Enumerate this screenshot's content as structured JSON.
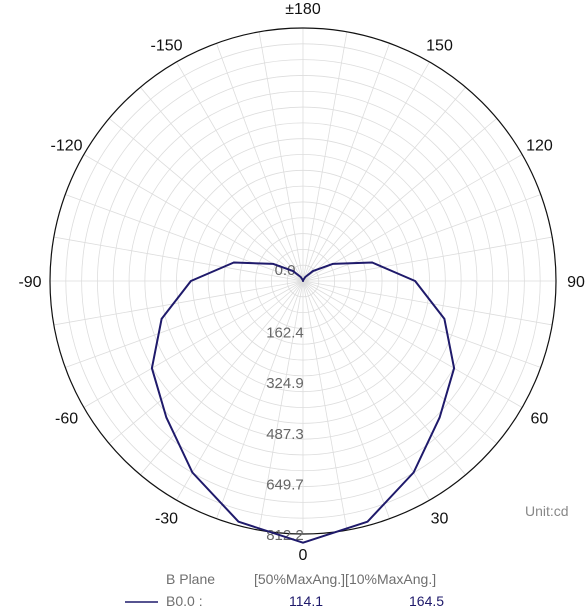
{
  "chart_data": {
    "type": "polar",
    "angle_labels": [
      "0",
      "30",
      "60",
      "90",
      "120",
      "150",
      "±180",
      "-150",
      "-120",
      "-90",
      "-60",
      "-30"
    ],
    "radial_ticks": [
      0.0,
      162.4,
      324.9,
      487.3,
      649.7,
      812.2
    ],
    "radial_tick_labels": [
      "0.0",
      "162.4",
      "324.9",
      "487.3",
      "649.7",
      "812.2"
    ],
    "rmax": 812.2,
    "grid": true,
    "unit_label": "Unit:cd",
    "series": [
      {
        "name": "B0.0",
        "color": "#1f1a6b",
        "angles": [
          0,
          15,
          30,
          45,
          60,
          75,
          90,
          105,
          120,
          135,
          150,
          165,
          180,
          -165,
          -150,
          -135,
          -120,
          -105,
          -90,
          -75,
          -60,
          -45,
          -30,
          -15
        ],
        "values": [
          840,
          800,
          710,
          620,
          560,
          470,
          360,
          230,
          110,
          45,
          15,
          3,
          0,
          3,
          15,
          45,
          110,
          230,
          360,
          470,
          560,
          620,
          710,
          800
        ]
      }
    ],
    "legend": {
      "header_plane": "B Plane",
      "header_cols": "[50%MaxAng.][10%MaxAng.]",
      "rows": [
        {
          "label": "B0.0  :",
          "v50": "114.1",
          "v10": "164.5"
        }
      ]
    }
  }
}
